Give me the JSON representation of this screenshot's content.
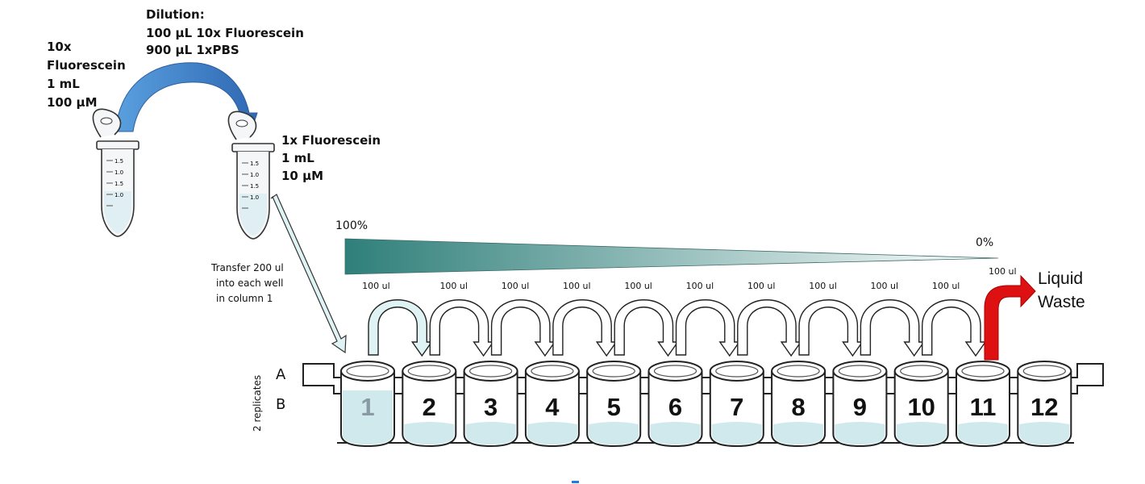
{
  "dilution": {
    "title": "Dilution:",
    "line1": "100 µL 10x Fluorescein",
    "line2": "900 µL 1xPBS"
  },
  "stock_tube": {
    "line1": "10x",
    "line2": "Fluorescein",
    "line3": "1 mL",
    "line4": "100 µM"
  },
  "working_tube": {
    "line1": "1x Fluorescein",
    "line2": "1 mL",
    "line3": "10 µM"
  },
  "tube_graduations": [
    "1.5",
    "1.0",
    "1.5",
    "1.0"
  ],
  "transfer_note": {
    "line1": "Transfer 200 ul",
    "line2": "into each well",
    "line3": "in column 1"
  },
  "gradient": {
    "start_label": "100%",
    "end_label": "0%",
    "start_color": "#2f7f7a",
    "end_color": "#ffffff"
  },
  "transfers": [
    "100 ul",
    "100 ul",
    "100 ul",
    "100 ul",
    "100 ul",
    "100 ul",
    "100 ul",
    "100 ul",
    "100 ul",
    "100 ul",
    "100 ul"
  ],
  "waste": {
    "line1": "Liquid",
    "line2": "Waste",
    "arrow_color": "#dd1111"
  },
  "plate": {
    "rows": [
      "A",
      "B"
    ],
    "replicates_label": "2 replicates",
    "wells": [
      "1",
      "2",
      "3",
      "4",
      "5",
      "6",
      "7",
      "8",
      "9",
      "10",
      "11",
      "12"
    ],
    "liquid_color": "#cfe9ec",
    "first_transfer_arrow_color": "#dff3f4"
  },
  "colors": {
    "blue_arrow": "#3c79bf"
  }
}
